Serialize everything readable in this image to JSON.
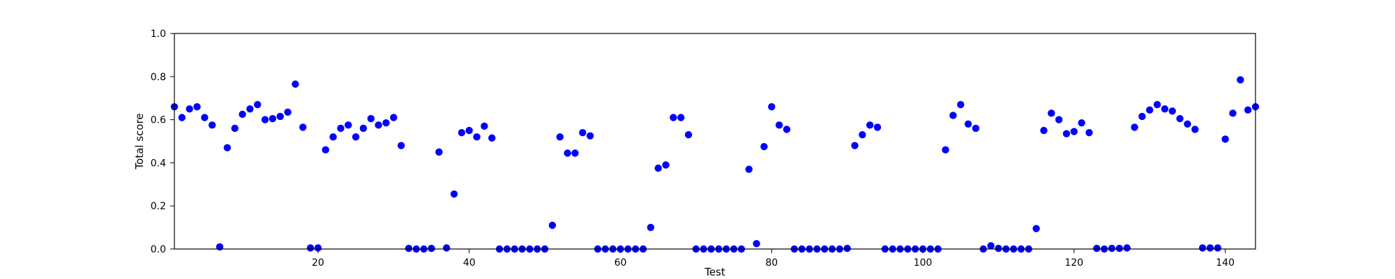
{
  "chart_data": {
    "type": "scatter",
    "title": "",
    "xlabel": "Test",
    "ylabel": "Total score",
    "xlim": [
      1,
      144
    ],
    "ylim": [
      0.0,
      1.0
    ],
    "x_ticks": [
      20,
      40,
      60,
      80,
      100,
      120,
      140
    ],
    "y_ticks": [
      0.0,
      0.2,
      0.4,
      0.6,
      0.8,
      1.0
    ],
    "grid": false,
    "legend": "none",
    "marker_color": "#0000ff",
    "points": [
      [
        1,
        0.66
      ],
      [
        2,
        0.61
      ],
      [
        3,
        0.65
      ],
      [
        4,
        0.66
      ],
      [
        5,
        0.61
      ],
      [
        6,
        0.575
      ],
      [
        7,
        0.01
      ],
      [
        8,
        0.47
      ],
      [
        9,
        0.56
      ],
      [
        10,
        0.625
      ],
      [
        11,
        0.65
      ],
      [
        12,
        0.67
      ],
      [
        13,
        0.6
      ],
      [
        14,
        0.605
      ],
      [
        15,
        0.615
      ],
      [
        16,
        0.635
      ],
      [
        17,
        0.765
      ],
      [
        18,
        0.565
      ],
      [
        19,
        0.005
      ],
      [
        20,
        0.005
      ],
      [
        21,
        0.46
      ],
      [
        22,
        0.52
      ],
      [
        23,
        0.56
      ],
      [
        24,
        0.575
      ],
      [
        25,
        0.52
      ],
      [
        26,
        0.56
      ],
      [
        27,
        0.605
      ],
      [
        28,
        0.575
      ],
      [
        29,
        0.585
      ],
      [
        30,
        0.61
      ],
      [
        31,
        0.48
      ],
      [
        32,
        0.003
      ],
      [
        33,
        0.0
      ],
      [
        34,
        0.0
      ],
      [
        35,
        0.003
      ],
      [
        36,
        0.45
      ],
      [
        37,
        0.005
      ],
      [
        38,
        0.255
      ],
      [
        39,
        0.54
      ],
      [
        40,
        0.55
      ],
      [
        41,
        0.52
      ],
      [
        42,
        0.57
      ],
      [
        43,
        0.515
      ],
      [
        44,
        0.0
      ],
      [
        45,
        0.0
      ],
      [
        46,
        0.0
      ],
      [
        47,
        0.0
      ],
      [
        48,
        0.0
      ],
      [
        49,
        0.0
      ],
      [
        50,
        0.0
      ],
      [
        51,
        0.11
      ],
      [
        52,
        0.52
      ],
      [
        53,
        0.445
      ],
      [
        54,
        0.445
      ],
      [
        55,
        0.54
      ],
      [
        56,
        0.525
      ],
      [
        57,
        0.0
      ],
      [
        58,
        0.0
      ],
      [
        59,
        0.0
      ],
      [
        60,
        0.0
      ],
      [
        61,
        0.0
      ],
      [
        62,
        0.0
      ],
      [
        63,
        0.0
      ],
      [
        64,
        0.1
      ],
      [
        65,
        0.375
      ],
      [
        66,
        0.39
      ],
      [
        67,
        0.61
      ],
      [
        68,
        0.61
      ],
      [
        69,
        0.53
      ],
      [
        70,
        0.0
      ],
      [
        71,
        0.0
      ],
      [
        72,
        0.0
      ],
      [
        73,
        0.0
      ],
      [
        74,
        0.0
      ],
      [
        75,
        0.0
      ],
      [
        76,
        0.0
      ],
      [
        77,
        0.37
      ],
      [
        78,
        0.025
      ],
      [
        79,
        0.475
      ],
      [
        80,
        0.66
      ],
      [
        81,
        0.575
      ],
      [
        82,
        0.555
      ],
      [
        83,
        0.0
      ],
      [
        84,
        0.0
      ],
      [
        85,
        0.0
      ],
      [
        86,
        0.0
      ],
      [
        87,
        0.0
      ],
      [
        88,
        0.0
      ],
      [
        89,
        0.0
      ],
      [
        90,
        0.003
      ],
      [
        91,
        0.48
      ],
      [
        92,
        0.53
      ],
      [
        93,
        0.575
      ],
      [
        94,
        0.565
      ],
      [
        95,
        0.0
      ],
      [
        96,
        0.0
      ],
      [
        97,
        0.0
      ],
      [
        98,
        0.0
      ],
      [
        99,
        0.0
      ],
      [
        100,
        0.0
      ],
      [
        101,
        0.0
      ],
      [
        102,
        0.0
      ],
      [
        103,
        0.46
      ],
      [
        104,
        0.62
      ],
      [
        105,
        0.67
      ],
      [
        106,
        0.58
      ],
      [
        107,
        0.56
      ],
      [
        108,
        0.0
      ],
      [
        109,
        0.015
      ],
      [
        110,
        0.003
      ],
      [
        111,
        0.0
      ],
      [
        112,
        0.0
      ],
      [
        113,
        0.0
      ],
      [
        114,
        0.0
      ],
      [
        115,
        0.095
      ],
      [
        116,
        0.55
      ],
      [
        117,
        0.63
      ],
      [
        118,
        0.6
      ],
      [
        119,
        0.535
      ],
      [
        120,
        0.545
      ],
      [
        121,
        0.585
      ],
      [
        122,
        0.54
      ],
      [
        123,
        0.003
      ],
      [
        124,
        0.0
      ],
      [
        125,
        0.003
      ],
      [
        126,
        0.003
      ],
      [
        127,
        0.005
      ],
      [
        128,
        0.565
      ],
      [
        129,
        0.615
      ],
      [
        130,
        0.645
      ],
      [
        131,
        0.67
      ],
      [
        132,
        0.65
      ],
      [
        133,
        0.64
      ],
      [
        134,
        0.605
      ],
      [
        135,
        0.58
      ],
      [
        136,
        0.555
      ],
      [
        137,
        0.005
      ],
      [
        138,
        0.005
      ],
      [
        139,
        0.005
      ],
      [
        140,
        0.51
      ],
      [
        141,
        0.63
      ],
      [
        142,
        0.785
      ],
      [
        143,
        0.645
      ],
      [
        144,
        0.66
      ]
    ]
  }
}
